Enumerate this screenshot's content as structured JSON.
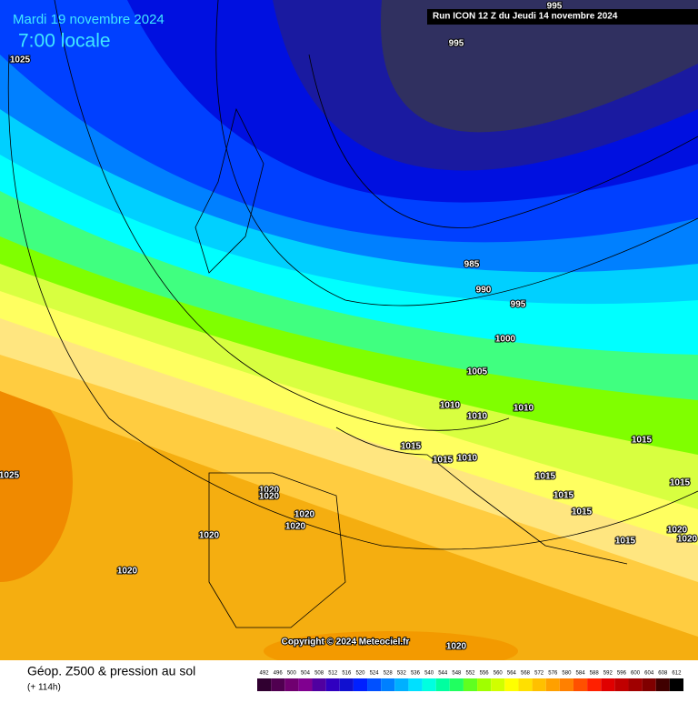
{
  "header": {
    "date": "Mardi 19 novembre 2024",
    "time": "7:00 locale",
    "run": "Run ICON 12 Z du Jeudi 14 novembre 2024"
  },
  "map": {
    "isobar_labels": [
      995,
      995,
      1025,
      985,
      990,
      995,
      1000,
      1005,
      1010,
      1010,
      1010,
      1015,
      1015,
      1010,
      1015,
      1025,
      1020,
      1020,
      1020,
      1020,
      1020,
      1015,
      1015,
      1015,
      1015,
      1015,
      1020,
      1020,
      1020,
      1020
    ],
    "copyright": "Copyright © 2024 Meteociel.fr"
  },
  "legend": {
    "title": "Géop. Z500 & pression au sol",
    "subtitle": "(+ 114h)",
    "values": [
      492,
      496,
      500,
      504,
      508,
      512,
      516,
      520,
      524,
      528,
      532,
      536,
      540,
      544,
      548,
      552,
      556,
      560,
      564,
      568,
      572,
      576,
      580,
      584,
      588,
      592,
      596,
      600,
      604,
      608,
      612
    ],
    "colors": [
      "#300030",
      "#500050",
      "#700070",
      "#800090",
      "#5000a0",
      "#3000c0",
      "#1010d0",
      "#0020ff",
      "#0050ff",
      "#0080ff",
      "#00b0ff",
      "#00e0ff",
      "#00ffe0",
      "#00ffa0",
      "#20ff60",
      "#60ff20",
      "#a0ff00",
      "#d0ff00",
      "#ffff00",
      "#ffe000",
      "#ffc000",
      "#ffa000",
      "#ff8000",
      "#ff5000",
      "#ff2000",
      "#e00000",
      "#c00000",
      "#a00000",
      "#800000",
      "#400000",
      "#000000"
    ]
  }
}
